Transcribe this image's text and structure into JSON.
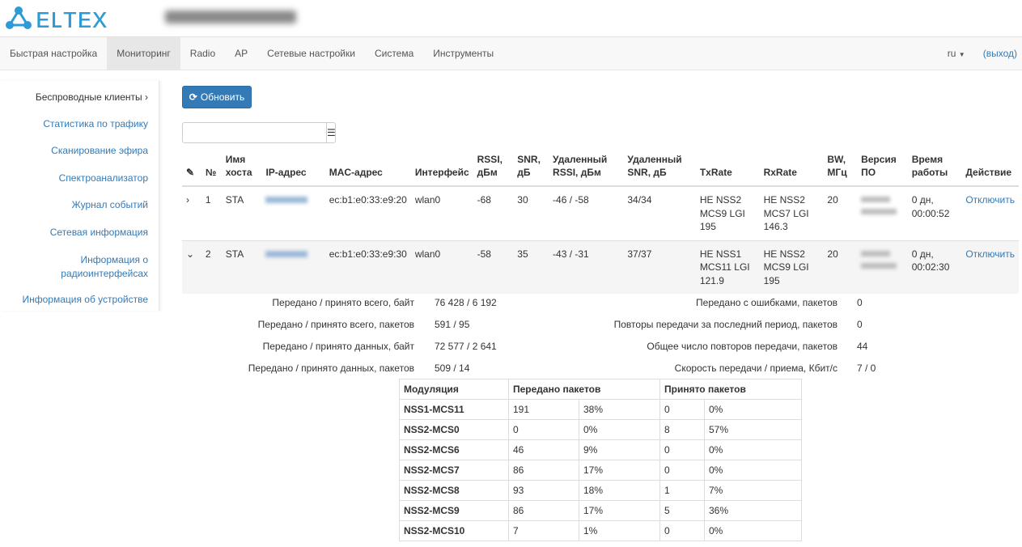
{
  "header": {
    "logo": "ELTEX",
    "colors": {
      "brand": "#2e9ad6",
      "primary": "#337ab7"
    }
  },
  "nav": {
    "items": [
      "Быстрая настройка",
      "Мониторинг",
      "Radio",
      "AP",
      "Сетевые настройки",
      "Система",
      "Инструменты"
    ],
    "active": "Мониторинг",
    "lang": "ru",
    "logout": "(выход)"
  },
  "sidebar": {
    "items": [
      "Беспроводные клиенты",
      "Статистика по трафику",
      "Сканирование эфира",
      "Спектроанализатор",
      "Журнал событий",
      "Сетевая информация",
      "Информация о радиоинтерфейсах",
      "Информация об устройстве"
    ],
    "active": "Беспроводные клиенты"
  },
  "toolbar": {
    "refresh": "Обновить",
    "filter_value": ""
  },
  "clients": {
    "columns": [
      "№",
      "Имя хоста",
      "IP-адрес",
      "MAC-адрес",
      "Интерфейс",
      "RSSI, дБм",
      "SNR, дБ",
      "Удаленный RSSI, дБм",
      "Удаленный SNR, дБ",
      "TxRate",
      "RxRate",
      "BW, МГц",
      "Версия ПО",
      "Время работы",
      "Действие"
    ],
    "rows": [
      {
        "num": "1",
        "host": "STA",
        "mac": "ec:b1:e0:33:e9:20",
        "iface": "wlan0",
        "rssi": "-68",
        "snr": "30",
        "rrssi": "-46 / -58",
        "rsnr": "34/34",
        "tx": "HE NSS2 MCS9 LGI 195",
        "rx": "HE NSS2 MCS7 LGI 146.3",
        "bw": "20",
        "uptime": "0 дн, 00:00:52",
        "action": "Отключить",
        "expanded": false
      },
      {
        "num": "2",
        "host": "STA",
        "mac": "ec:b1:e0:33:e9:30",
        "iface": "wlan0",
        "rssi": "-58",
        "snr": "35",
        "rrssi": "-43 / -31",
        "rsnr": "37/37",
        "tx": "HE NSS1 MCS11 LGI 121.9",
        "rx": "HE NSS2 MCS9 LGI 195",
        "bw": "20",
        "uptime": "0 дн, 00:02:30",
        "action": "Отключить",
        "expanded": true
      }
    ]
  },
  "details": {
    "left": [
      {
        "label": "Передано / принято всего, байт",
        "value": "76 428 / 6 192"
      },
      {
        "label": "Передано / принято всего, пакетов",
        "value": "591 / 95"
      },
      {
        "label": "Передано / принято данных, байт",
        "value": "72 577 / 2 641"
      },
      {
        "label": "Передано / принято данных, пакетов",
        "value": "509 / 14"
      }
    ],
    "right": [
      {
        "label": "Передано с ошибками, пакетов",
        "value": "0"
      },
      {
        "label": "Повторы передачи за последний период, пакетов",
        "value": "0"
      },
      {
        "label": "Общее число повторов передачи, пакетов",
        "value": "44"
      },
      {
        "label": "Скорость передачи / приема, Кбит/с",
        "value": "7 / 0"
      }
    ]
  },
  "modulation": {
    "headers": [
      "Модуляция",
      "Передано пакетов",
      "Принято пакетов"
    ],
    "rows": [
      [
        "NSS1-MCS11",
        "191",
        "38%",
        "0",
        "0%"
      ],
      [
        "NSS2-MCS0",
        "0",
        "0%",
        "8",
        "57%"
      ],
      [
        "NSS2-MCS6",
        "46",
        "9%",
        "0",
        "0%"
      ],
      [
        "NSS2-MCS7",
        "86",
        "17%",
        "0",
        "0%"
      ],
      [
        "NSS2-MCS8",
        "93",
        "18%",
        "1",
        "7%"
      ],
      [
        "NSS2-MCS9",
        "86",
        "17%",
        "5",
        "36%"
      ],
      [
        "NSS2-MCS10",
        "7",
        "1%",
        "0",
        "0%"
      ]
    ]
  }
}
